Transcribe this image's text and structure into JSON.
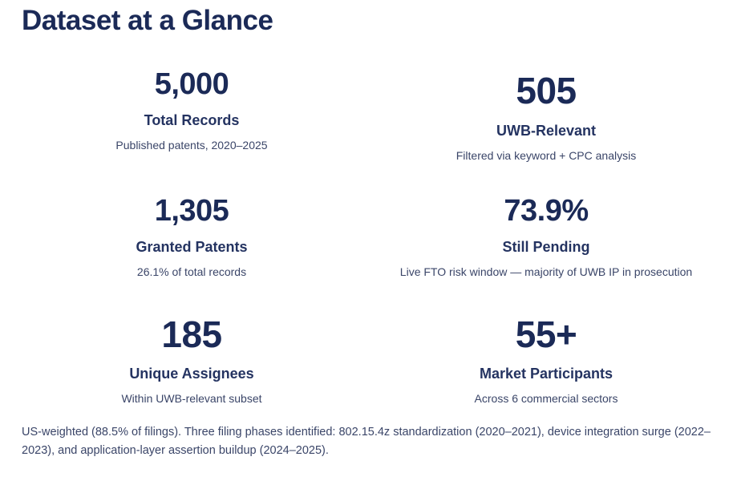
{
  "title": "Dataset at a Glance",
  "stats": [
    {
      "value": "5,000",
      "label": "Total Records",
      "sub": "Published patents, 2020–2025"
    },
    {
      "value": "505",
      "label": "UWB-Relevant",
      "sub": "Filtered via keyword + CPC analysis"
    },
    {
      "value": "1,305",
      "label": "Granted Patents",
      "sub": "26.1% of total records"
    },
    {
      "value": "73.9%",
      "label": "Still Pending",
      "sub": "Live FTO risk window — majority of UWB IP in prosecution"
    },
    {
      "value": "185",
      "label": "Unique Assignees",
      "sub": "Within UWB-relevant subset"
    },
    {
      "value": "55+",
      "label": "Market Participants",
      "sub": "Across 6 commercial sectors"
    }
  ],
  "footnote": "US-weighted (88.5% of filings). Three filing phases identified: 802.15.4z standardization (2020–2021), device integration surge (2022–2023), and application-layer assertion buildup (2024–2025)."
}
